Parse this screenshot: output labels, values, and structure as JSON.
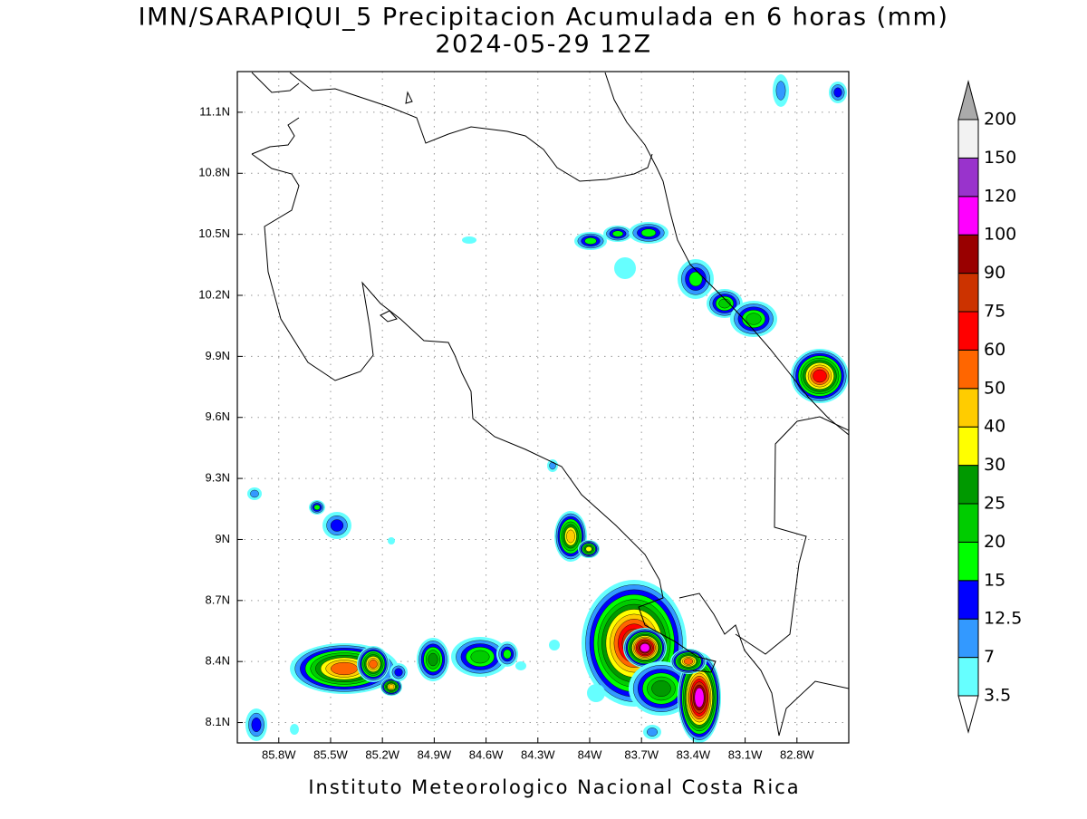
{
  "title": "IMN/SARAPIQUI_5 Precipitacion Acumulada en 6 horas (mm)",
  "subtitle": "2024-05-29 12Z",
  "map": {
    "xlim": [
      -86.04,
      -82.5
    ],
    "ylim": [
      8.0,
      11.3
    ],
    "xticks": [
      {
        "value": -85.8,
        "label": "85.8W"
      },
      {
        "value": -85.5,
        "label": "85.5W"
      },
      {
        "value": -85.2,
        "label": "85.2W"
      },
      {
        "value": -84.9,
        "label": "84.9W"
      },
      {
        "value": -84.6,
        "label": "84.6W"
      },
      {
        "value": -84.3,
        "label": "84.3W"
      },
      {
        "value": -84,
        "label": "84W"
      },
      {
        "value": -83.7,
        "label": "83.7W"
      },
      {
        "value": -83.4,
        "label": "83.4W"
      },
      {
        "value": -83.1,
        "label": "83.1W"
      },
      {
        "value": -82.8,
        "label": "82.8W"
      }
    ],
    "yticks": [
      {
        "value": 8.1,
        "label": "8.1N"
      },
      {
        "value": 8.4,
        "label": "8.4N"
      },
      {
        "value": 8.7,
        "label": "8.7N"
      },
      {
        "value": 9,
        "label": "9N"
      },
      {
        "value": 9.3,
        "label": "9.3N"
      },
      {
        "value": 9.6,
        "label": "9.6N"
      },
      {
        "value": 9.9,
        "label": "9.9N"
      },
      {
        "value": 10.2,
        "label": "10.2N"
      },
      {
        "value": 10.5,
        "label": "10.5N"
      },
      {
        "value": 10.8,
        "label": "10.8N"
      },
      {
        "value": 11.1,
        "label": "11.1N"
      }
    ],
    "grid": true
  },
  "colorbar": {
    "levels": [
      3.5,
      7,
      12.5,
      15,
      20,
      25,
      30,
      40,
      50,
      60,
      75,
      90,
      100,
      120,
      150,
      200
    ],
    "colors": [
      "#66ffff",
      "#3399ff",
      "#0000ff",
      "#00ff00",
      "#00cc00",
      "#009900",
      "#ffff00",
      "#ffcc00",
      "#ff6600",
      "#ff0000",
      "#cc3300",
      "#990000",
      "#ff00ff",
      "#9933cc",
      "#f2f2f2"
    ],
    "under_color": "#ffffff",
    "over_color": "#aaaaaa"
  },
  "footer": "Instituto Meteorologico Nacional Costa Rica"
}
